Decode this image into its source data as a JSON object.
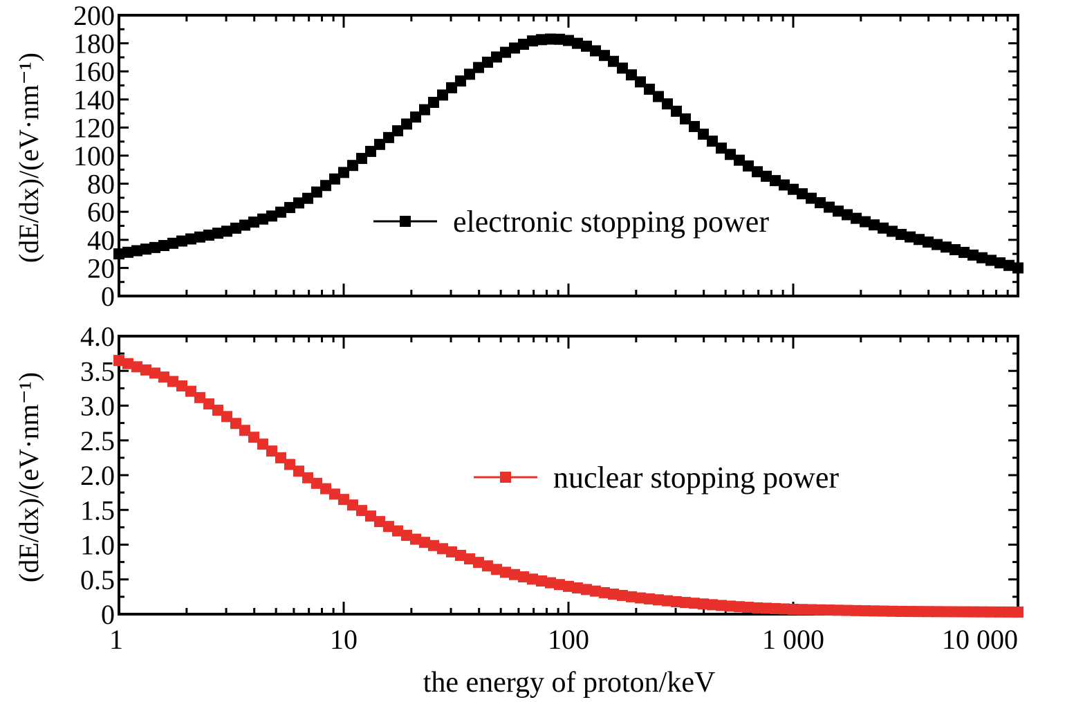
{
  "chart_data": [
    {
      "type": "line",
      "panel": "top",
      "ylabel": "(dE/dx)/(eV·nm⁻¹)",
      "ylim": [
        0,
        200
      ],
      "yticks": [
        "0",
        "20",
        "40",
        "60",
        "80",
        "100",
        "120",
        "140",
        "160",
        "180",
        "200"
      ],
      "xlim": [
        1,
        10000
      ],
      "x_scale": "log",
      "legend_position": "center",
      "series": [
        {
          "name": "electronic stopping power",
          "color": "#000000",
          "marker": "square",
          "x": [
            1,
            1.5,
            2,
            3,
            5,
            7,
            10,
            15,
            20,
            30,
            40,
            50,
            60,
            70,
            80,
            90,
            100,
            120,
            150,
            200,
            300,
            400,
            500,
            700,
            1000,
            1500,
            2000,
            3000,
            5000,
            7000,
            10000
          ],
          "y": [
            30,
            35,
            40,
            46,
            58,
            70,
            88,
            110,
            125,
            148,
            163,
            172,
            178,
            182,
            183,
            183,
            182,
            178,
            170,
            155,
            132,
            115,
            103,
            88,
            76,
            62,
            54,
            44,
            34,
            27,
            20
          ]
        }
      ]
    },
    {
      "type": "line",
      "panel": "bottom",
      "ylabel": "(dE/dx)/(eV·nm⁻¹)",
      "ylim": [
        0,
        4.0
      ],
      "yticks": [
        "0",
        "0.5",
        "1.0",
        "1.5",
        "2.0",
        "2.5",
        "3.0",
        "3.5",
        "4.0"
      ],
      "xlim": [
        1,
        10000
      ],
      "x_scale": "log",
      "xlabel": "the energy of proton/keV",
      "xticks": [
        "1",
        "10",
        "100",
        "1 000",
        "10 000"
      ],
      "legend_position": "center-right",
      "series": [
        {
          "name": "nuclear stopping power",
          "color": "#e8312a",
          "marker": "square",
          "x": [
            1,
            1.5,
            2,
            3,
            5,
            7,
            10,
            15,
            20,
            30,
            50,
            70,
            100,
            150,
            200,
            300,
            500,
            700,
            1000,
            2000,
            3000,
            5000,
            10000
          ],
          "y": [
            3.65,
            3.45,
            3.25,
            2.85,
            2.3,
            1.95,
            1.65,
            1.3,
            1.1,
            0.9,
            0.62,
            0.5,
            0.4,
            0.3,
            0.24,
            0.18,
            0.12,
            0.09,
            0.07,
            0.05,
            0.04,
            0.035,
            0.03
          ]
        }
      ]
    }
  ]
}
